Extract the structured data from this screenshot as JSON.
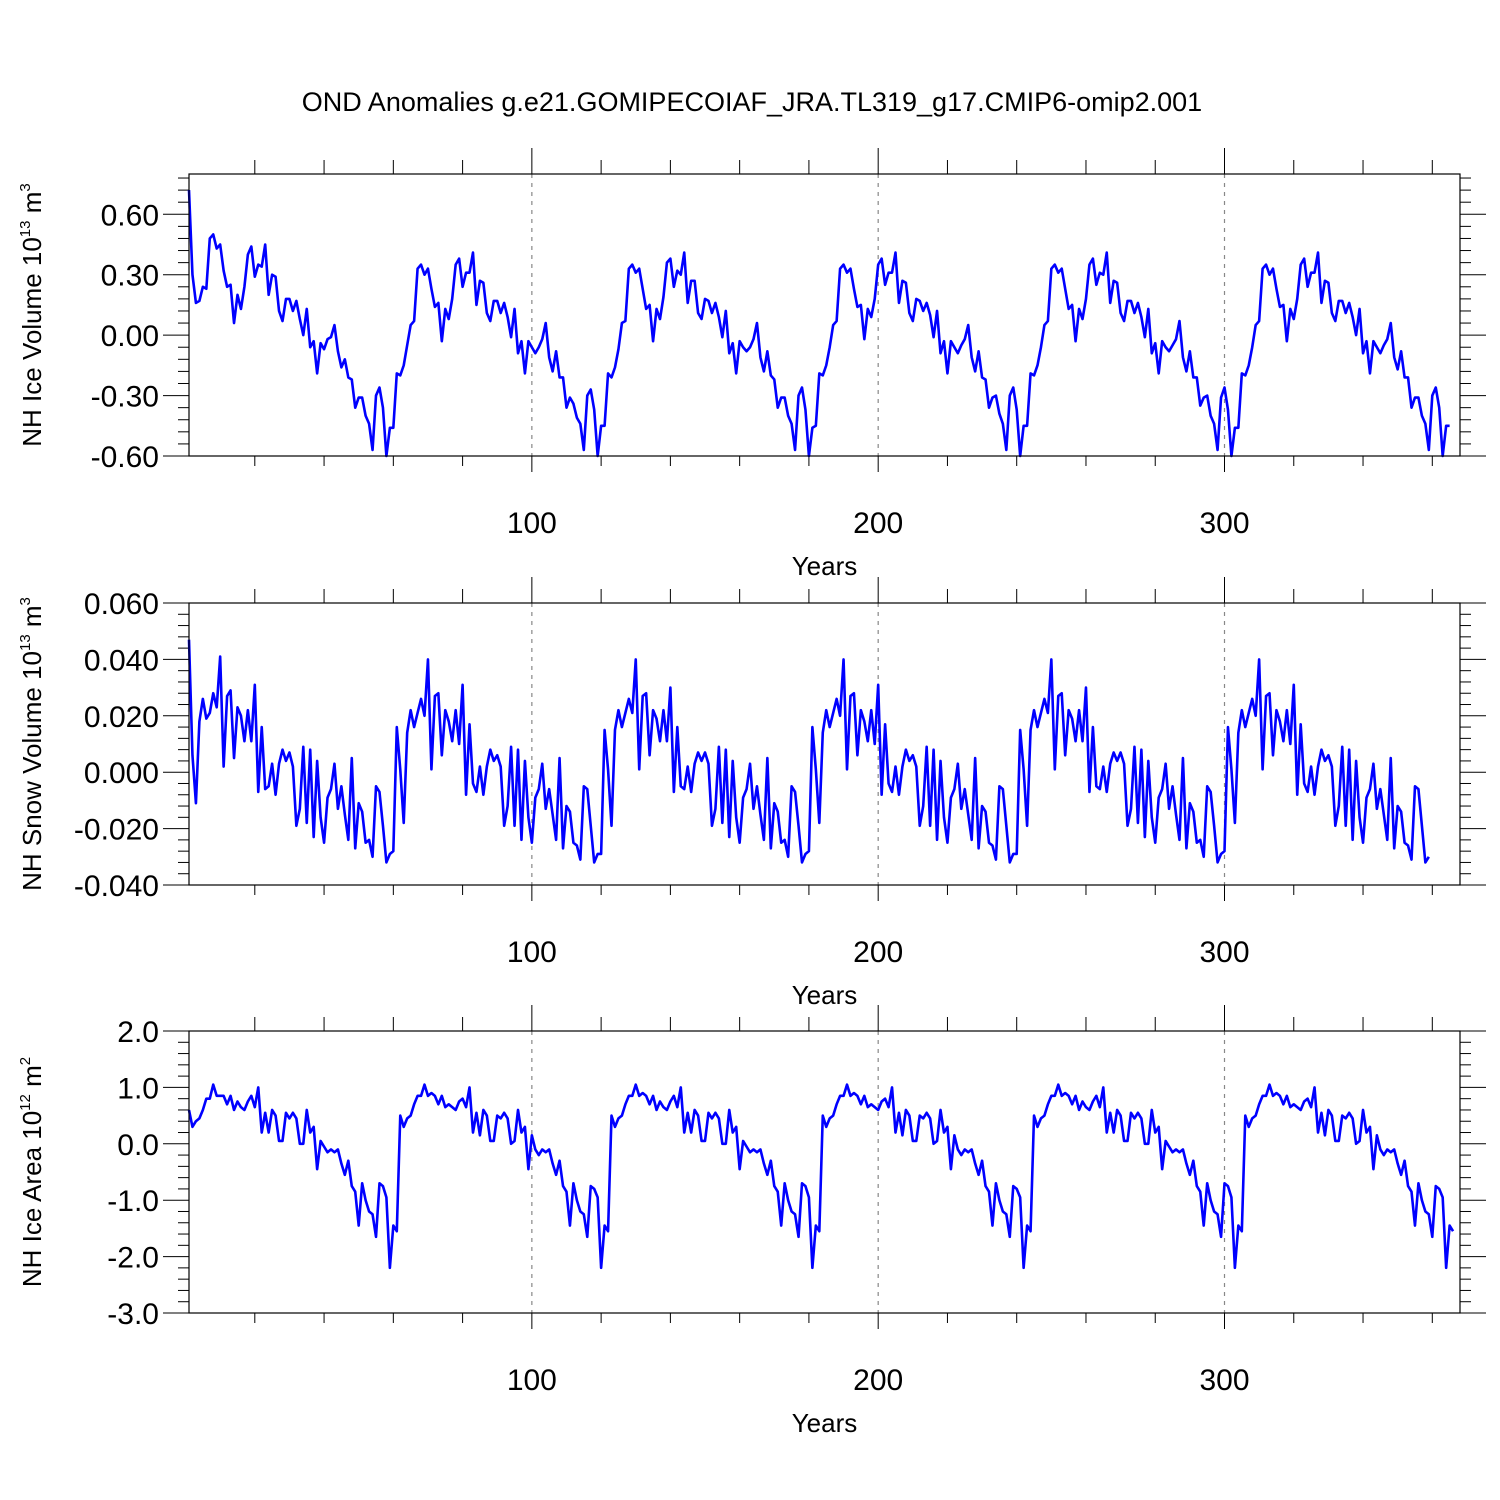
{
  "title": "OND Anomalies g.e21.GOMIPECOIAF_JRA.TL319_g17.CMIP6-omip2.001",
  "colors": {
    "line": "#0000ff",
    "grid": "#888888",
    "axes": "#000000"
  },
  "chart_data": [
    {
      "type": "line",
      "ylabel_main": "NH Ice Volume 10",
      "ylabel_exp": "13",
      "ylabel_unit": " m",
      "ylabel_unit_exp": "3",
      "xlabel": "Years",
      "xlim": [
        1,
        368
      ],
      "ylim": [
        -0.6,
        0.8
      ],
      "yticks": [
        -0.6,
        -0.3,
        0.0,
        0.3,
        0.6
      ],
      "ytick_labels": [
        "-0.60",
        "-0.30",
        "0.00",
        "0.30",
        "0.60"
      ],
      "xticks": [
        100,
        200,
        300
      ],
      "xtick_labels": [
        "100",
        "200",
        "300"
      ],
      "grid_x": true,
      "start_year": 1,
      "values": [
        0.72,
        0.3,
        0.16,
        0.17,
        0.24,
        0.23,
        0.48,
        0.5,
        0.43,
        0.45,
        0.32,
        0.24,
        0.25,
        0.06,
        0.2,
        0.13,
        0.24,
        0.4,
        0.44,
        0.29,
        0.35,
        0.34,
        0.45,
        0.2,
        0.3,
        0.29,
        0.12,
        0.07,
        0.18,
        0.18,
        0.12,
        0.17,
        0.08,
        0.0,
        0.13,
        -0.06,
        -0.03,
        -0.19,
        -0.04,
        -0.07,
        -0.02,
        -0.01,
        0.05,
        -0.08,
        -0.16,
        -0.12,
        -0.21,
        -0.22,
        -0.36,
        -0.31,
        -0.31,
        -0.4,
        -0.44,
        -0.57,
        -0.3,
        -0.26,
        -0.36,
        -0.6,
        -0.46,
        -0.46,
        -0.19,
        -0.2,
        -0.15,
        -0.05,
        0.05,
        0.07,
        0.33,
        0.35,
        0.3,
        0.33,
        0.23,
        0.14,
        0.16,
        -0.03,
        0.13,
        0.08,
        0.18,
        0.35,
        0.38,
        0.24,
        0.31,
        0.31,
        0.41,
        0.15,
        0.27,
        0.26,
        0.11,
        0.07,
        0.17,
        0.17,
        0.11,
        0.16,
        0.09,
        -0.01,
        0.13,
        -0.09,
        -0.03,
        -0.19,
        -0.03,
        -0.06,
        -0.09,
        -0.06,
        -0.02,
        0.06,
        -0.11,
        -0.18,
        -0.08,
        -0.21,
        -0.21,
        -0.36,
        -0.31,
        -0.34,
        -0.41,
        -0.44,
        -0.57,
        -0.3,
        -0.27,
        -0.37,
        -0.6,
        -0.45,
        -0.45,
        -0.19,
        -0.21,
        -0.16,
        -0.07,
        0.06,
        0.07,
        0.33,
        0.35,
        0.31,
        0.33,
        0.23,
        0.13,
        0.15,
        -0.03,
        0.13,
        0.08,
        0.19,
        0.36,
        0.38,
        0.24,
        0.32,
        0.3,
        0.41,
        0.16,
        0.27,
        0.27,
        0.11,
        0.08,
        0.18,
        0.17,
        0.11,
        0.16,
        0.09,
        -0.01,
        0.12,
        -0.09,
        -0.04,
        -0.19,
        -0.03,
        -0.06,
        -0.08,
        -0.06,
        -0.02,
        0.06,
        -0.11,
        -0.18,
        -0.08,
        -0.2,
        -0.22,
        -0.36,
        -0.31,
        -0.31,
        -0.4,
        -0.44,
        -0.57,
        -0.3,
        -0.26,
        -0.37,
        -0.6,
        -0.46,
        -0.45,
        -0.19,
        -0.2,
        -0.15,
        -0.06,
        0.05,
        0.07,
        0.33,
        0.35,
        0.31,
        0.33,
        0.23,
        0.14,
        0.15,
        -0.02,
        0.13,
        0.09,
        0.18,
        0.35,
        0.38,
        0.25,
        0.31,
        0.31,
        0.41,
        0.16,
        0.27,
        0.26,
        0.11,
        0.07,
        0.18,
        0.17,
        0.12,
        0.16,
        0.1,
        -0.01,
        0.12,
        -0.09,
        -0.03,
        -0.19,
        -0.03,
        -0.06,
        -0.09,
        -0.05,
        -0.02,
        0.05,
        -0.11,
        -0.18,
        -0.08,
        -0.21,
        -0.22,
        -0.36,
        -0.31,
        -0.3,
        -0.39,
        -0.44,
        -0.57,
        -0.3,
        -0.26,
        -0.37,
        -0.6,
        -0.45,
        -0.45,
        -0.19,
        -0.2,
        -0.15,
        -0.06,
        0.05,
        0.07,
        0.33,
        0.35,
        0.31,
        0.33,
        0.23,
        0.13,
        0.15,
        -0.03,
        0.13,
        0.08,
        0.18,
        0.35,
        0.38,
        0.25,
        0.31,
        0.3,
        0.41,
        0.16,
        0.27,
        0.26,
        0.11,
        0.07,
        0.17,
        0.17,
        0.11,
        0.16,
        0.09,
        -0.01,
        0.13,
        -0.09,
        -0.04,
        -0.19,
        -0.03,
        -0.06,
        -0.08,
        -0.05,
        -0.02,
        0.07,
        -0.11,
        -0.18,
        -0.08,
        -0.21,
        -0.21,
        -0.35,
        -0.31,
        -0.3,
        -0.4,
        -0.44,
        -0.57,
        -0.31,
        -0.26,
        -0.37,
        -0.6,
        -0.46,
        -0.46,
        -0.19,
        -0.2,
        -0.15,
        -0.06,
        0.05,
        0.07,
        0.33,
        0.35,
        0.3,
        0.33,
        0.23,
        0.14,
        0.15,
        -0.03,
        0.13,
        0.08,
        0.18,
        0.35,
        0.38,
        0.24,
        0.31,
        0.31,
        0.41,
        0.16,
        0.27,
        0.26,
        0.11,
        0.07,
        0.17,
        0.17,
        0.11,
        0.16,
        0.09,
        0.0,
        0.13,
        -0.09,
        -0.03,
        -0.19,
        -0.03,
        -0.06,
        -0.09,
        -0.05,
        -0.02,
        0.06,
        -0.11,
        -0.17,
        -0.08,
        -0.21,
        -0.21,
        -0.36,
        -0.31,
        -0.31,
        -0.4,
        -0.44,
        -0.57,
        -0.3,
        -0.26,
        -0.36,
        -0.6,
        -0.45,
        -0.45
      ]
    },
    {
      "type": "line",
      "ylabel_main": "NH Snow Volume 10",
      "ylabel_exp": "13",
      "ylabel_unit": " m",
      "ylabel_unit_exp": "3",
      "xlabel": "Years",
      "xlim": [
        1,
        368
      ],
      "ylim": [
        -0.04,
        0.06
      ],
      "yticks": [
        -0.04,
        -0.02,
        0.0,
        0.02,
        0.04,
        0.06
      ],
      "ytick_labels": [
        "-0.040",
        "-0.020",
        "0.000",
        "0.020",
        "0.040",
        "0.060"
      ],
      "xticks": [
        100,
        200,
        300
      ],
      "xtick_labels": [
        "100",
        "200",
        "300"
      ],
      "grid_x": true,
      "start_year": 1,
      "values": [
        0.047,
        0.006,
        -0.011,
        0.018,
        0.026,
        0.019,
        0.021,
        0.028,
        0.023,
        0.041,
        0.002,
        0.027,
        0.029,
        0.005,
        0.023,
        0.02,
        0.011,
        0.022,
        0.011,
        0.031,
        -0.007,
        0.016,
        -0.006,
        -0.005,
        0.003,
        -0.008,
        0.003,
        0.008,
        0.004,
        0.007,
        0.002,
        -0.019,
        -0.013,
        0.009,
        -0.018,
        0.008,
        -0.023,
        0.004,
        -0.016,
        -0.025,
        -0.009,
        -0.006,
        0.003,
        -0.013,
        -0.005,
        -0.015,
        -0.024,
        0.005,
        -0.027,
        -0.011,
        -0.014,
        -0.025,
        -0.024,
        -0.03,
        -0.005,
        -0.007,
        -0.019,
        -0.032,
        -0.029,
        -0.028,
        0.016,
        0.001,
        -0.018,
        0.014,
        0.022,
        0.016,
        0.021,
        0.026,
        0.02,
        0.04,
        0.001,
        0.027,
        0.028,
        0.006,
        0.022,
        0.018,
        0.011,
        0.022,
        0.01,
        0.031,
        -0.008,
        0.017,
        -0.004,
        -0.007,
        0.002,
        -0.008,
        0.002,
        0.008,
        0.004,
        0.006,
        0.002,
        -0.019,
        -0.012,
        0.009,
        -0.019,
        0.008,
        -0.024,
        0.004,
        -0.016,
        -0.025,
        -0.009,
        -0.006,
        0.003,
        -0.013,
        -0.006,
        -0.015,
        -0.024,
        0.005,
        -0.027,
        -0.012,
        -0.014,
        -0.025,
        -0.026,
        -0.031,
        -0.005,
        -0.006,
        -0.019,
        -0.032,
        -0.029,
        -0.029,
        0.015,
        0.001,
        -0.019,
        0.015,
        0.022,
        0.016,
        0.021,
        0.026,
        0.021,
        0.04,
        0.001,
        0.027,
        0.028,
        0.006,
        0.022,
        0.019,
        0.011,
        0.022,
        0.011,
        0.03,
        -0.007,
        0.016,
        -0.005,
        -0.006,
        0.002,
        -0.007,
        0.003,
        0.007,
        0.004,
        0.007,
        0.003,
        -0.019,
        -0.013,
        0.009,
        -0.018,
        0.008,
        -0.023,
        0.004,
        -0.016,
        -0.025,
        -0.009,
        -0.006,
        0.003,
        -0.013,
        -0.005,
        -0.015,
        -0.024,
        0.005,
        -0.027,
        -0.011,
        -0.014,
        -0.025,
        -0.024,
        -0.03,
        -0.005,
        -0.007,
        -0.019,
        -0.032,
        -0.029,
        -0.028,
        0.016,
        0.001,
        -0.018,
        0.014,
        0.022,
        0.016,
        0.021,
        0.026,
        0.02,
        0.04,
        0.001,
        0.027,
        0.028,
        0.006,
        0.022,
        0.018,
        0.011,
        0.022,
        0.01,
        0.031,
        -0.008,
        0.017,
        -0.004,
        -0.007,
        0.002,
        -0.008,
        0.002,
        0.008,
        0.004,
        0.006,
        0.002,
        -0.019,
        -0.012,
        0.009,
        -0.019,
        0.008,
        -0.024,
        0.004,
        -0.016,
        -0.025,
        -0.009,
        -0.006,
        0.003,
        -0.013,
        -0.006,
        -0.015,
        -0.024,
        0.005,
        -0.027,
        -0.012,
        -0.014,
        -0.025,
        -0.026,
        -0.031,
        -0.005,
        -0.006,
        -0.019,
        -0.032,
        -0.029,
        -0.029,
        0.015,
        0.001,
        -0.019,
        0.015,
        0.022,
        0.016,
        0.021,
        0.026,
        0.021,
        0.04,
        0.001,
        0.027,
        0.028,
        0.006,
        0.022,
        0.019,
        0.011,
        0.022,
        0.011,
        0.03,
        -0.007,
        0.016,
        -0.005,
        -0.006,
        0.002,
        -0.007,
        0.003,
        0.007,
        0.004,
        0.007,
        0.003,
        -0.019,
        -0.013,
        0.009,
        -0.018,
        0.008,
        -0.023,
        0.004,
        -0.016,
        -0.025,
        -0.009,
        -0.006,
        0.003,
        -0.013,
        -0.005,
        -0.015,
        -0.024,
        0.005,
        -0.027,
        -0.011,
        -0.014,
        -0.025,
        -0.024,
        -0.03,
        -0.005,
        -0.007,
        -0.019,
        -0.032,
        -0.029,
        -0.028,
        0.016,
        0.001,
        -0.018,
        0.014,
        0.022,
        0.016,
        0.021,
        0.026,
        0.02,
        0.04,
        0.001,
        0.027,
        0.028,
        0.006,
        0.022,
        0.018,
        0.011,
        0.022,
        0.01,
        0.031,
        -0.008,
        0.017,
        -0.004,
        -0.007,
        0.002,
        -0.008,
        0.002,
        0.008,
        0.004,
        0.006,
        0.002,
        -0.019,
        -0.012,
        0.009,
        -0.019,
        0.008,
        -0.024,
        0.004,
        -0.016,
        -0.025,
        -0.009,
        -0.006,
        0.003,
        -0.013,
        -0.006,
        -0.015,
        -0.024,
        0.005,
        -0.027,
        -0.012,
        -0.014,
        -0.025,
        -0.026,
        -0.031,
        -0.005,
        -0.006,
        -0.019,
        -0.032,
        -0.03
      ]
    },
    {
      "type": "line",
      "ylabel_main": "NH Ice Area 10",
      "ylabel_exp": "12",
      "ylabel_unit": " m",
      "ylabel_unit_exp": "2",
      "xlabel": "Years",
      "xlim": [
        1,
        368
      ],
      "ylim": [
        -3.0,
        2.0
      ],
      "yticks": [
        -3.0,
        -2.0,
        -1.0,
        0.0,
        1.0,
        2.0
      ],
      "ytick_labels": [
        "-3.0",
        "-2.0",
        "-1.0",
        "0.0",
        "1.0",
        "2.0"
      ],
      "xticks": [
        100,
        200,
        300
      ],
      "xtick_labels": [
        "100",
        "200",
        "300"
      ],
      "grid_x": true,
      "start_year": 1,
      "values": [
        0.6,
        0.3,
        0.4,
        0.45,
        0.6,
        0.8,
        0.8,
        1.05,
        0.85,
        0.85,
        0.85,
        0.7,
        0.85,
        0.6,
        0.75,
        0.65,
        0.6,
        0.75,
        0.85,
        0.65,
        1.0,
        0.2,
        0.55,
        0.2,
        0.6,
        0.5,
        0.05,
        0.05,
        0.55,
        0.45,
        0.55,
        0.45,
        0.0,
        0.0,
        0.6,
        0.2,
        0.3,
        -0.45,
        0.05,
        -0.05,
        -0.15,
        -0.1,
        -0.15,
        -0.1,
        -0.35,
        -0.55,
        -0.3,
        -0.75,
        -0.85,
        -1.45,
        -0.7,
        -1.0,
        -1.2,
        -1.25,
        -1.65,
        -0.7,
        -0.75,
        -0.95,
        -2.2,
        -1.45,
        -1.55,
        0.5,
        0.3,
        0.45,
        0.5,
        0.7,
        0.85,
        0.85,
        1.05,
        0.85,
        0.9,
        0.85,
        0.7,
        0.85,
        0.65,
        0.7,
        0.65,
        0.6,
        0.75,
        0.8,
        0.65,
        1.0,
        0.2,
        0.55,
        0.15,
        0.6,
        0.5,
        0.05,
        0.05,
        0.5,
        0.45,
        0.55,
        0.45,
        0.0,
        0.05,
        0.6,
        0.2,
        0.3,
        -0.45,
        0.15,
        -0.1,
        -0.2,
        -0.1,
        -0.15,
        -0.1,
        -0.35,
        -0.55,
        -0.3,
        -0.75,
        -0.85,
        -1.45,
        -0.7,
        -1.0,
        -1.2,
        -1.25,
        -1.65,
        -0.75,
        -0.8,
        -0.95,
        -2.2,
        -1.45,
        -1.55,
        0.5,
        0.3,
        0.45,
        0.5,
        0.7,
        0.85,
        0.85,
        1.05,
        0.85,
        0.9,
        0.85,
        0.7,
        0.85,
        0.6,
        0.75,
        0.65,
        0.6,
        0.75,
        0.85,
        0.65,
        1.0,
        0.2,
        0.55,
        0.2,
        0.6,
        0.5,
        0.05,
        0.05,
        0.55,
        0.45,
        0.55,
        0.45,
        0.0,
        0.0,
        0.6,
        0.2,
        0.3,
        -0.45,
        0.05,
        -0.05,
        -0.15,
        -0.1,
        -0.15,
        -0.1,
        -0.35,
        -0.55,
        -0.3,
        -0.75,
        -0.85,
        -1.45,
        -0.7,
        -1.0,
        -1.2,
        -1.25,
        -1.65,
        -0.7,
        -0.75,
        -0.95,
        -2.2,
        -1.45,
        -1.55,
        0.5,
        0.3,
        0.45,
        0.5,
        0.7,
        0.85,
        0.85,
        1.05,
        0.85,
        0.9,
        0.85,
        0.7,
        0.85,
        0.65,
        0.7,
        0.65,
        0.6,
        0.75,
        0.8,
        0.65,
        1.0,
        0.2,
        0.55,
        0.15,
        0.6,
        0.5,
        0.05,
        0.05,
        0.5,
        0.45,
        0.55,
        0.45,
        0.0,
        0.05,
        0.6,
        0.2,
        0.3,
        -0.45,
        0.15,
        -0.1,
        -0.2,
        -0.1,
        -0.15,
        -0.1,
        -0.35,
        -0.55,
        -0.3,
        -0.75,
        -0.85,
        -1.45,
        -0.7,
        -1.0,
        -1.2,
        -1.25,
        -1.65,
        -0.75,
        -0.8,
        -0.95,
        -2.2,
        -1.45,
        -1.55,
        0.5,
        0.3,
        0.45,
        0.5,
        0.7,
        0.85,
        0.85,
        1.05,
        0.85,
        0.9,
        0.85,
        0.7,
        0.85,
        0.6,
        0.75,
        0.65,
        0.6,
        0.75,
        0.85,
        0.65,
        1.0,
        0.2,
        0.55,
        0.2,
        0.6,
        0.5,
        0.05,
        0.05,
        0.55,
        0.45,
        0.55,
        0.45,
        0.0,
        0.0,
        0.6,
        0.2,
        0.3,
        -0.45,
        0.05,
        -0.05,
        -0.15,
        -0.1,
        -0.15,
        -0.1,
        -0.35,
        -0.55,
        -0.3,
        -0.75,
        -0.85,
        -1.45,
        -0.7,
        -1.0,
        -1.2,
        -1.25,
        -1.65,
        -0.7,
        -0.75,
        -0.95,
        -2.2,
        -1.45,
        -1.55,
        0.5,
        0.3,
        0.45,
        0.5,
        0.7,
        0.85,
        0.85,
        1.05,
        0.85,
        0.9,
        0.85,
        0.7,
        0.85,
        0.65,
        0.7,
        0.65,
        0.6,
        0.75,
        0.8,
        0.65,
        1.0,
        0.2,
        0.55,
        0.15,
        0.6,
        0.5,
        0.05,
        0.05,
        0.5,
        0.45,
        0.55,
        0.45,
        0.0,
        0.05,
        0.6,
        0.2,
        0.3,
        -0.45,
        0.15,
        -0.1,
        -0.2,
        -0.1,
        -0.15,
        -0.1,
        -0.35,
        -0.55,
        -0.3,
        -0.75,
        -0.85,
        -1.45,
        -0.7,
        -1.0,
        -1.2,
        -1.25,
        -1.65,
        -0.75,
        -0.8,
        -0.95,
        -2.2,
        -1.45,
        -1.55
      ]
    }
  ]
}
